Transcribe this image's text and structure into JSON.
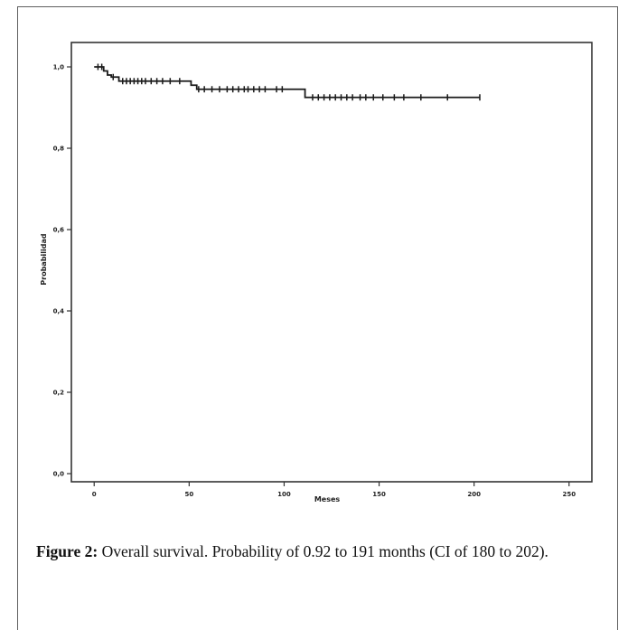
{
  "caption": {
    "label": "Figure 2:",
    "text": "Overall survival. Probability of 0.92 to 191 months (CI of 180 to 202)."
  },
  "chart_data": {
    "type": "line",
    "subtype": "kaplan-meier-step",
    "title": "",
    "xlabel": "Meses",
    "ylabel": "Probabilidad",
    "xlim": [
      -12,
      262
    ],
    "ylim": [
      -0.02,
      1.06
    ],
    "xticks": [
      {
        "value": 0,
        "label": "0"
      },
      {
        "value": 50,
        "label": "50"
      },
      {
        "value": 100,
        "label": "100"
      },
      {
        "value": 150,
        "label": "150"
      },
      {
        "value": 200,
        "label": "200"
      },
      {
        "value": 250,
        "label": "250"
      }
    ],
    "yticks": [
      {
        "value": 0.0,
        "label": "0,0"
      },
      {
        "value": 0.2,
        "label": "0,2"
      },
      {
        "value": 0.4,
        "label": "0,4"
      },
      {
        "value": 0.6,
        "label": "0,6"
      },
      {
        "value": 0.8,
        "label": "0,8"
      },
      {
        "value": 1.0,
        "label": "1,0"
      }
    ],
    "grid": false,
    "series": [
      {
        "color": "#1a1a1a",
        "steps": [
          {
            "x": 0,
            "y": 1.0
          },
          {
            "x": 5,
            "y": 0.99
          },
          {
            "x": 7,
            "y": 0.98
          },
          {
            "x": 9,
            "y": 0.975
          },
          {
            "x": 13,
            "y": 0.965
          },
          {
            "x": 51,
            "y": 0.955
          },
          {
            "x": 54,
            "y": 0.945
          },
          {
            "x": 111,
            "y": 0.925
          },
          {
            "x": 203,
            "y": 0.925
          }
        ],
        "censored": [
          2,
          4,
          10,
          15,
          17,
          19,
          21,
          23,
          25,
          27,
          30,
          33,
          36,
          40,
          45,
          55,
          58,
          62,
          66,
          70,
          73,
          76,
          79,
          81,
          84,
          87,
          90,
          96,
          99,
          115,
          118,
          121,
          124,
          127,
          130,
          133,
          136,
          140,
          143,
          147,
          152,
          158,
          163,
          172,
          186,
          203
        ]
      }
    ]
  }
}
